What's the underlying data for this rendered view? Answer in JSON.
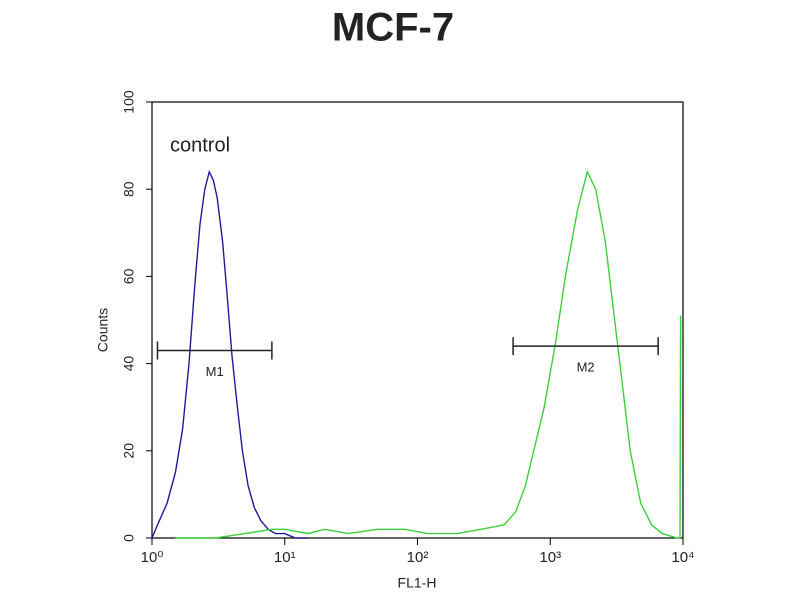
{
  "chart_data": {
    "type": "line",
    "title": "MCF-7",
    "xlabel": "FL1-H",
    "ylabel": "Counts",
    "xscale": "log",
    "xlim": [
      1,
      10000
    ],
    "ylim": [
      0,
      100
    ],
    "xticks": [
      {
        "value": 1,
        "label": "10⁰"
      },
      {
        "value": 10,
        "label": "10¹"
      },
      {
        "value": 100,
        "label": "10²"
      },
      {
        "value": 1000,
        "label": "10³"
      },
      {
        "value": 10000,
        "label": "10⁴"
      }
    ],
    "yticks": [
      0,
      20,
      40,
      60,
      80,
      100
    ],
    "annotations": [
      "control"
    ],
    "markers": [
      {
        "label": "M1",
        "range": [
          1.1,
          8
        ],
        "y": 43
      },
      {
        "label": "M2",
        "range": [
          525,
          6500
        ],
        "y": 44
      }
    ],
    "series": [
      {
        "color": "#1c1c9c",
        "x": [
          1.0,
          1.1,
          1.3,
          1.5,
          1.7,
          1.9,
          2.1,
          2.3,
          2.5,
          2.7,
          2.9,
          3.1,
          3.4,
          3.7,
          4.0,
          4.4,
          4.8,
          5.3,
          5.9,
          6.6,
          7.5,
          8.5,
          10,
          12,
          15
        ],
        "values": [
          0,
          3,
          8,
          15,
          25,
          40,
          58,
          72,
          80,
          84,
          82,
          78,
          68,
          55,
          42,
          30,
          20,
          12,
          7,
          4,
          2,
          1,
          1,
          0,
          0
        ]
      },
      {
        "color": "#3ad13a",
        "x": [
          1.5,
          3,
          5,
          8,
          10,
          15,
          20,
          30,
          50,
          80,
          120,
          200,
          300,
          450,
          550,
          650,
          750,
          900,
          1100,
          1300,
          1600,
          1900,
          2200,
          2600,
          3000,
          3500,
          4000,
          4800,
          5800,
          7000,
          9000,
          9500,
          9600
        ],
        "values": [
          0,
          0,
          1,
          2,
          2,
          1,
          2,
          1,
          2,
          2,
          1,
          1,
          2,
          3,
          6,
          12,
          20,
          30,
          45,
          60,
          75,
          84,
          80,
          68,
          52,
          35,
          20,
          8,
          3,
          1,
          0,
          0,
          51
        ]
      }
    ]
  }
}
